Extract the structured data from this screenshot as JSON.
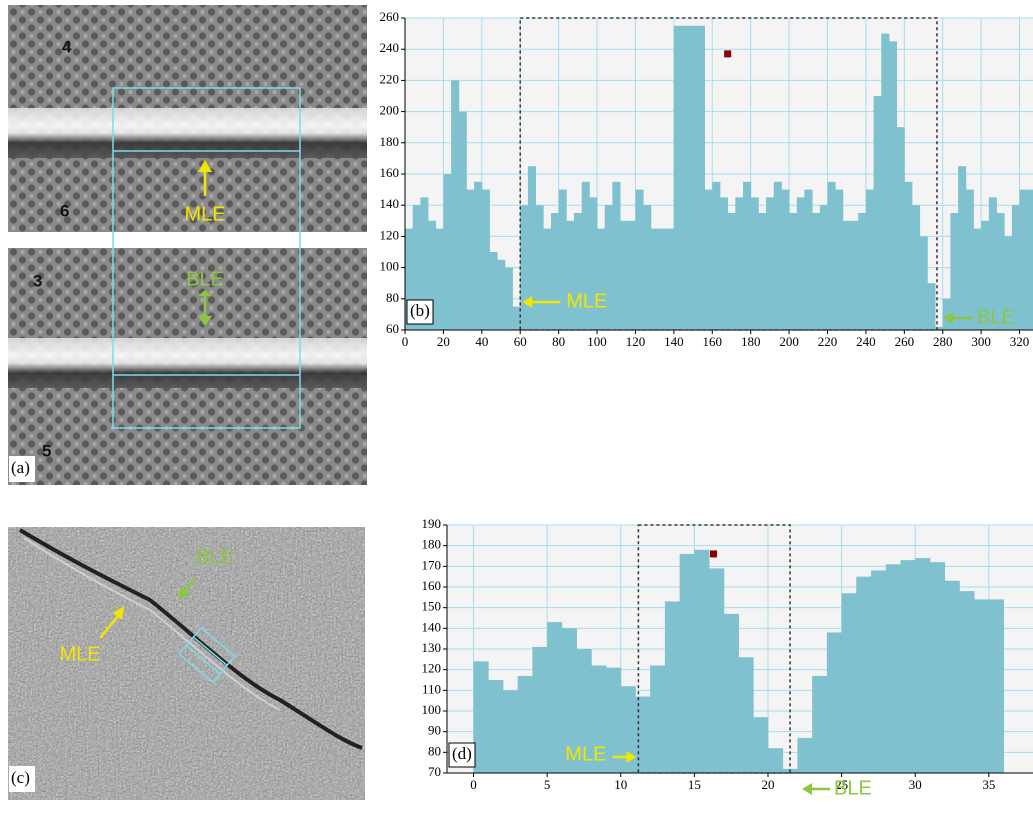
{
  "panels": {
    "a": {
      "label": "(a)",
      "numbers": [
        "4",
        "6",
        "3",
        "5"
      ],
      "annotations": [
        "MLE",
        "BLE"
      ]
    },
    "c": {
      "label": "(c)",
      "annotations": [
        "BLE",
        "MLE"
      ]
    }
  },
  "chart_data": [
    {
      "type": "histogram",
      "label": "(b)",
      "bins": [
        0,
        4,
        8,
        12,
        16,
        20,
        24,
        28,
        32,
        36,
        40,
        44,
        48,
        52,
        56,
        60,
        64,
        68,
        72,
        76,
        80,
        84,
        88,
        92,
        96,
        100,
        104,
        108,
        112,
        116,
        120,
        124,
        128,
        132,
        136,
        140,
        144,
        148,
        152,
        156,
        160,
        164,
        168,
        172,
        176,
        180,
        184,
        188,
        192,
        196,
        200,
        204,
        208,
        212,
        216,
        220,
        224,
        228,
        232,
        236,
        240,
        244,
        248,
        252,
        256,
        260,
        264,
        268,
        272,
        276,
        280,
        284,
        288,
        292,
        296,
        300,
        304,
        308,
        312,
        316,
        320,
        324,
        328,
        332
      ],
      "values": [
        125,
        140,
        145,
        130,
        125,
        160,
        220,
        200,
        150,
        155,
        150,
        110,
        105,
        100,
        75,
        140,
        165,
        140,
        125,
        135,
        150,
        130,
        135,
        155,
        145,
        125,
        140,
        155,
        130,
        130,
        150,
        140,
        125,
        125,
        125,
        255,
        255,
        255,
        255,
        150,
        155,
        145,
        135,
        145,
        155,
        145,
        135,
        145,
        155,
        150,
        135,
        145,
        150,
        135,
        140,
        155,
        150,
        130,
        130,
        135,
        150,
        210,
        250,
        245,
        190,
        155,
        140,
        120,
        90,
        62,
        80,
        135,
        165,
        150,
        125,
        130,
        145,
        135,
        120,
        140,
        150,
        150,
        135
      ],
      "color": "#7fc1cf",
      "grid": true,
      "xlim": [
        0,
        327
      ],
      "ylim": [
        60,
        260
      ],
      "xticks": [
        0,
        20,
        40,
        60,
        80,
        100,
        120,
        140,
        160,
        180,
        200,
        220,
        240,
        260,
        280,
        300,
        320
      ],
      "yticks": [
        60,
        80,
        100,
        120,
        140,
        160,
        180,
        200,
        220,
        240,
        260
      ],
      "selection": [
        60,
        277
      ],
      "marker": {
        "x": 168,
        "y": 237
      },
      "annotations": [
        "MLE",
        "BLE"
      ]
    },
    {
      "type": "histogram",
      "label": "(d)",
      "bins": [
        0,
        1,
        2,
        3,
        4,
        5,
        6,
        7,
        8,
        9,
        10,
        11,
        12,
        13,
        14,
        15,
        16,
        17,
        18,
        19,
        20,
        21,
        22,
        23,
        24,
        25,
        26,
        27,
        28,
        29,
        30,
        31,
        32,
        33,
        34,
        35,
        36
      ],
      "values": [
        124,
        115,
        110,
        117,
        131,
        143,
        140,
        130,
        122,
        121,
        112,
        107,
        122,
        153,
        176,
        178,
        169,
        147,
        126,
        97,
        82,
        72,
        87,
        117,
        138,
        157,
        165,
        168,
        171,
        173,
        174,
        172,
        163,
        158,
        154,
        154
      ],
      "color": "#7fc1cf",
      "grid": true,
      "xlim": [
        -1.8,
        38
      ],
      "ylim": [
        70,
        190
      ],
      "xticks": [
        0,
        5,
        10,
        15,
        20,
        25,
        30,
        35
      ],
      "yticks": [
        70,
        80,
        90,
        100,
        110,
        120,
        130,
        140,
        150,
        160,
        170,
        180,
        190
      ],
      "selection": [
        11.2,
        21.5
      ],
      "marker": {
        "x": 16.3,
        "y": 176
      },
      "annotations": [
        "MLE",
        "BLE"
      ]
    }
  ]
}
